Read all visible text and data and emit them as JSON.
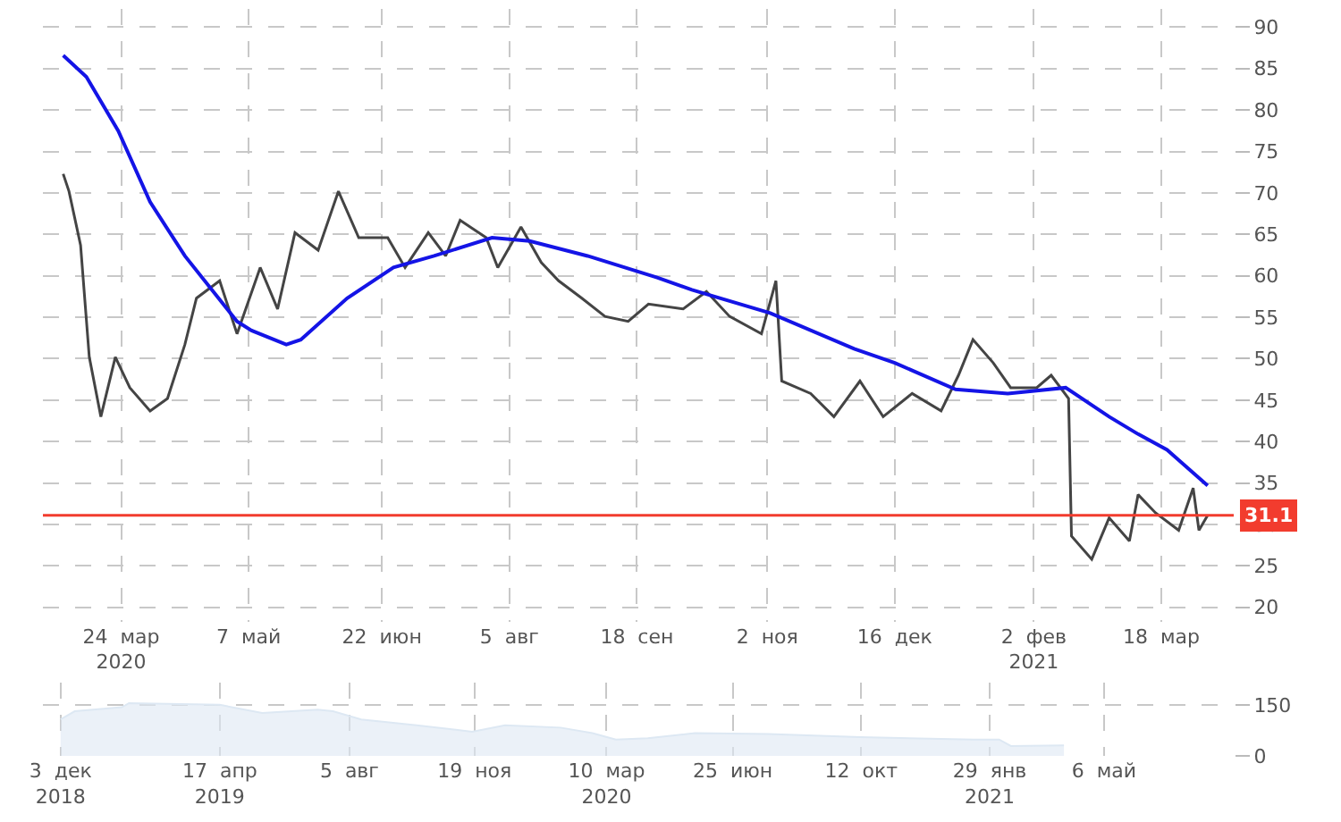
{
  "chart_data": [
    {
      "type": "line",
      "series": [
        {
          "color": "#444444",
          "x": [
            "2020-03-04",
            "2020-03-06",
            "2020-03-10",
            "2020-03-13",
            "2020-03-17",
            "2020-03-22",
            "2020-03-27",
            "2020-04-03",
            "2020-04-09",
            "2020-04-15",
            "2020-04-19",
            "2020-04-27",
            "2020-05-03",
            "2020-05-11",
            "2020-05-17",
            "2020-05-23",
            "2020-05-31",
            "2020-06-07",
            "2020-06-14",
            "2020-06-24",
            "2020-06-30",
            "2020-07-08",
            "2020-07-14",
            "2020-07-19",
            "2020-07-28",
            "2020-08-01",
            "2020-08-09",
            "2020-08-16",
            "2020-08-22",
            "2020-08-30",
            "2020-09-07",
            "2020-09-15",
            "2020-09-22",
            "2020-10-04",
            "2020-10-12",
            "2020-10-20",
            "2020-10-31",
            "2020-11-05",
            "2020-11-07",
            "2020-11-17",
            "2020-11-25",
            "2020-12-04",
            "2020-12-12",
            "2020-12-22",
            "2021-01-01",
            "2021-01-07",
            "2021-01-12",
            "2021-01-19",
            "2021-01-25",
            "2021-02-03",
            "2021-02-08",
            "2021-02-14",
            "2021-02-15",
            "2021-02-22",
            "2021-02-28",
            "2021-03-07",
            "2021-03-10",
            "2021-03-16",
            "2021-03-24",
            "2021-03-29",
            "2021-03-31",
            "2021-04-03"
          ],
          "values": [
            72.3,
            70.2,
            63.7,
            50.2,
            43.0,
            50.2,
            46.5,
            43.7,
            45.2,
            51.7,
            57.3,
            59.4,
            53.0,
            61,
            56,
            65.2,
            63.1,
            70.2,
            64.6,
            64.6,
            61,
            65.2,
            62.4,
            66.7,
            64.6,
            61,
            65.9,
            61.6,
            59.4,
            57.3,
            55.1,
            54.5,
            56.6,
            56,
            58.1,
            55.1,
            53.0,
            59.4,
            47.3,
            45.8,
            43.0,
            47.3,
            43.0,
            45.8,
            43.7,
            48.0,
            52.3,
            49.5,
            46.5,
            46.5,
            48.0,
            45.2,
            28.6,
            25.8,
            30.8,
            28.0,
            33.6,
            31.4,
            29.3,
            34.4,
            29.3,
            31.1
          ]
        },
        {
          "color": "#1414e6",
          "x": [
            "2020-03-04",
            "2020-03-12",
            "2020-03-23",
            "2020-04-03",
            "2020-04-15",
            "2020-05-03",
            "2020-05-08",
            "2020-05-20",
            "2020-05-25",
            "2020-06-10",
            "2020-06-26",
            "2020-07-10",
            "2020-07-30",
            "2020-08-12",
            "2020-09-01",
            "2020-09-25",
            "2020-10-07",
            "2020-11-03",
            "2020-12-02",
            "2020-12-16",
            "2021-01-06",
            "2021-01-24",
            "2021-02-13",
            "2021-02-28",
            "2021-03-10",
            "2021-03-20",
            "2021-04-03"
          ],
          "values": [
            86.6,
            84.0,
            77.5,
            68.9,
            62.4,
            54.5,
            53.4,
            51.7,
            52.3,
            57.3,
            61,
            62.4,
            64.6,
            64.2,
            62.4,
            59.8,
            58.3,
            55.5,
            51.2,
            49.5,
            46.3,
            45.8,
            46.5,
            43.0,
            40.9,
            39.0,
            34.7
          ]
        }
      ],
      "xlim": [
        "2020-02-26",
        "2021-04-12"
      ],
      "xticks": [
        {
          "value": "2020-03-24",
          "label": "24  мар\n2020"
        },
        {
          "value": "2020-05-07",
          "label": "7  май"
        },
        {
          "value": "2020-06-22",
          "label": "22  июн"
        },
        {
          "value": "2020-08-05",
          "label": "5  авг"
        },
        {
          "value": "2020-09-18",
          "label": "18  сен"
        },
        {
          "value": "2020-11-02",
          "label": "2  ноя"
        },
        {
          "value": "2020-12-16",
          "label": "16  дек"
        },
        {
          "value": "2021-02-02",
          "label": "2  фев\n2021"
        },
        {
          "value": "2021-03-18",
          "label": "18  мар"
        }
      ],
      "ylim": [
        18.3,
        92.2
      ],
      "yticks": [
        20,
        25,
        30,
        35,
        40,
        45,
        50,
        55,
        60,
        65,
        70,
        75,
        80,
        85,
        90
      ],
      "grid": true,
      "ref_lines": [
        {
          "axis": "y",
          "value": 31.1,
          "label": "31.1",
          "color": "#f23c2e"
        }
      ]
    },
    {
      "type": "area",
      "x": [
        "2018-12-03",
        "2018-12-15",
        "2019-01-24",
        "2019-01-30",
        "2019-04-17",
        "2019-05-23",
        "2019-07-09",
        "2019-07-22",
        "2019-08-15",
        "2019-10-01",
        "2019-11-17",
        "2019-12-15",
        "2020-01-31",
        "2020-02-27",
        "2020-03-18",
        "2020-04-14",
        "2020-05-24",
        "2020-07-25",
        "2020-10-11",
        "2021-01-15",
        "2021-02-06",
        "2021-02-16",
        "2021-04-02"
      ],
      "values": [
        107,
        131,
        143,
        155,
        150,
        126,
        136,
        131,
        107,
        90,
        71,
        90,
        83,
        67,
        48,
        52,
        67,
        64,
        55,
        48,
        48,
        29,
        31
      ],
      "color": "#dde8f3",
      "xlim": [
        "2018-11-18",
        "2021-08-24"
      ],
      "xticks": [
        {
          "value": "2018-12-03",
          "label": "3  дек\n2018"
        },
        {
          "value": "2019-04-17",
          "label": "17  апр\n2019"
        },
        {
          "value": "2019-08-05",
          "label": "5  авг"
        },
        {
          "value": "2019-11-19",
          "label": "19  ноя"
        },
        {
          "value": "2020-03-10",
          "label": "10  мар\n2020"
        },
        {
          "value": "2020-06-25",
          "label": "25  июн"
        },
        {
          "value": "2020-10-12",
          "label": "12  окт"
        },
        {
          "value": "2021-01-29",
          "label": "29  янв\n2021"
        },
        {
          "value": "2021-05-06",
          "label": "6  май"
        }
      ],
      "ylim": [
        0,
        215
      ],
      "yticks": [
        0,
        150
      ],
      "grid": true
    }
  ]
}
